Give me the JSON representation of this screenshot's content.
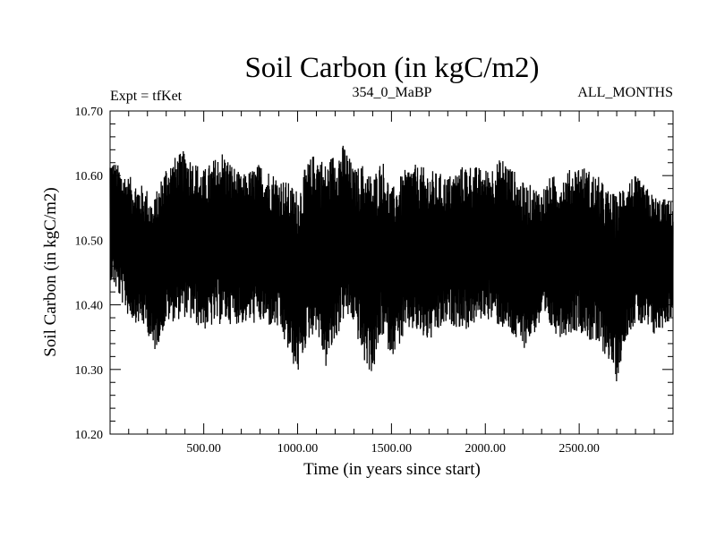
{
  "chart_data": {
    "type": "line",
    "title": "Soil Carbon (in kgC/m2)",
    "subtitle_left": "Expt = tfKet",
    "subtitle_center": "354_0_MaBP",
    "subtitle_right": "ALL_MONTHS",
    "xlabel": "Time (in years since start)",
    "ylabel": "Soil Carbon (in kgC/m2)",
    "xlim": [
      1,
      3000
    ],
    "ylim": [
      10.2,
      10.7
    ],
    "x_ticks": [
      500,
      1000,
      1500,
      2000,
      2500
    ],
    "x_tick_labels": [
      "500.00",
      "1000.00",
      "1500.00",
      "2000.00",
      "2500.00"
    ],
    "y_ticks": [
      10.2,
      10.3,
      10.4,
      10.5,
      10.6,
      10.7
    ],
    "y_tick_labels": [
      "10.20",
      "10.30",
      "10.40",
      "10.50",
      "10.60",
      "10.70"
    ],
    "grid": false,
    "series": [
      {
        "color": "#000000",
        "x": [
          1,
          100,
          200,
          230,
          300,
          400,
          500,
          600,
          700,
          800,
          900,
          1000,
          1050,
          1100,
          1150,
          1200,
          1250,
          1300,
          1350,
          1400,
          1450,
          1500,
          1600,
          1700,
          1800,
          1900,
          2000,
          2100,
          2200,
          2300,
          2350,
          2400,
          2500,
          2600,
          2650,
          2700,
          2750,
          2800,
          2900,
          3000
        ],
        "max": [
          10.63,
          10.6,
          10.58,
          10.56,
          10.62,
          10.64,
          10.61,
          10.64,
          10.6,
          10.62,
          10.6,
          10.58,
          10.62,
          10.64,
          10.62,
          10.64,
          10.65,
          10.61,
          10.62,
          10.6,
          10.63,
          10.58,
          10.62,
          10.61,
          10.6,
          10.62,
          10.61,
          10.63,
          10.59,
          10.58,
          10.6,
          10.6,
          10.62,
          10.6,
          10.58,
          10.57,
          10.6,
          10.6,
          10.57,
          10.56
        ],
        "min": [
          10.44,
          10.38,
          10.36,
          10.32,
          10.37,
          10.38,
          10.36,
          10.37,
          10.37,
          10.37,
          10.36,
          10.29,
          10.34,
          10.36,
          10.3,
          10.34,
          10.38,
          10.37,
          10.31,
          10.29,
          10.35,
          10.32,
          10.36,
          10.34,
          10.37,
          10.36,
          10.38,
          10.36,
          10.33,
          10.37,
          10.36,
          10.35,
          10.36,
          10.33,
          10.32,
          10.28,
          10.35,
          10.37,
          10.35,
          10.38
        ]
      }
    ]
  }
}
